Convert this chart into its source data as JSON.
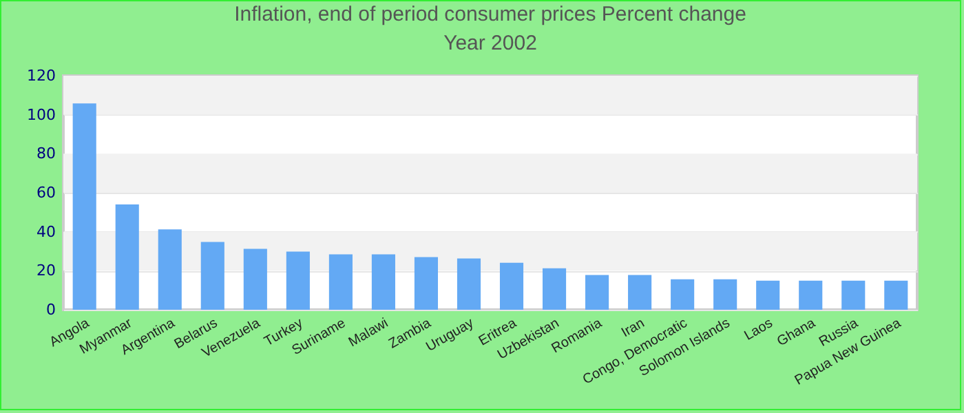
{
  "chart_data": {
    "type": "bar",
    "title": "Inflation, end of period consumer prices  Percent change",
    "subtitle": "Year 2002",
    "categories": [
      "Angola",
      "Myanmar",
      "Argentina",
      "Belarus",
      "Venezuela",
      "Turkey",
      "Suriname",
      "Malawi",
      "Zambia",
      "Uruguay",
      "Eritrea",
      "Uzbekistan",
      "Romania",
      "Iran",
      "Congo, Democratic",
      "Solomon Islands",
      "Laos",
      "Ghana",
      "Russia",
      "Papua New Guinea"
    ],
    "values": [
      105.8,
      54.0,
      41.2,
      34.8,
      31.2,
      29.8,
      28.4,
      28.4,
      27.0,
      26.3,
      24.1,
      21.3,
      17.8,
      17.8,
      15.6,
      15.6,
      14.9,
      14.9,
      14.9,
      14.9
    ],
    "color": "#63a9f4",
    "ylim": [
      0,
      120
    ],
    "yticks": [
      0,
      20,
      40,
      60,
      80,
      100,
      120
    ],
    "grid": "y"
  }
}
